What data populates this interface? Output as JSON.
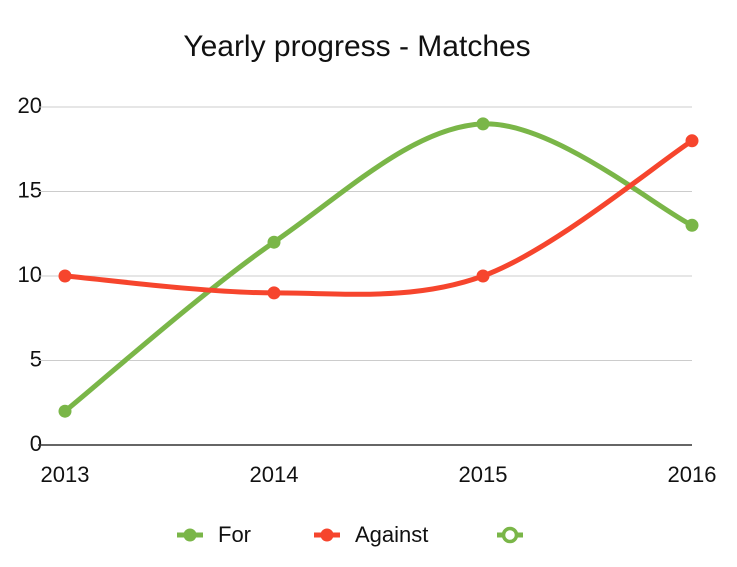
{
  "chart_data": {
    "type": "line",
    "title": "Yearly progress - Matches",
    "categories": [
      "2013",
      "2014",
      "2015",
      "2016"
    ],
    "series": [
      {
        "name": "For",
        "color": "#7ab648",
        "values": [
          2,
          12,
          19,
          13
        ]
      },
      {
        "name": "Against",
        "color": "#f6452d",
        "values": [
          10,
          9,
          10,
          18
        ]
      }
    ],
    "ylim": [
      0,
      20
    ],
    "yticks": [
      0,
      5,
      10,
      15,
      20
    ],
    "grid": true,
    "smooth": true,
    "legend": "bottom"
  }
}
